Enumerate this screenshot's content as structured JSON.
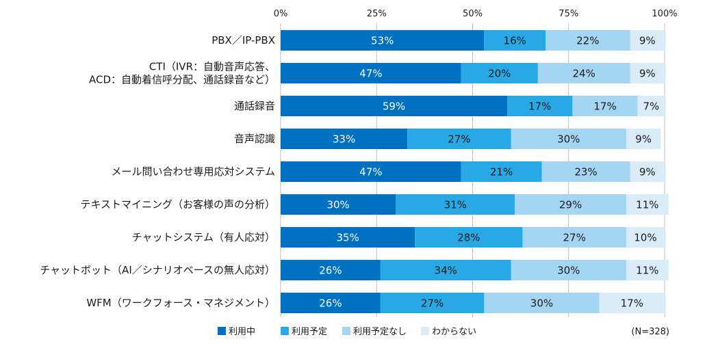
{
  "chart_data": {
    "type": "bar",
    "orientation": "horizontal",
    "stacked": "percent",
    "title": "",
    "xlabel": "",
    "ylabel": "",
    "xlim": [
      0,
      100
    ],
    "ticks": [
      "0%",
      "25%",
      "50%",
      "75%",
      "100%"
    ],
    "grid": true,
    "legend_position": "bottom",
    "note": "(N=328)",
    "categories": [
      [
        "PBX／IP-PBX"
      ],
      [
        "CTI（IVR：自動音声応答、",
        "ACD：自動着信呼分配、通話録音など）"
      ],
      [
        "通話録音"
      ],
      [
        "音声認識"
      ],
      [
        "メール問い合わせ専用応対システム"
      ],
      [
        "テキストマイニング（お客様の声の分析）"
      ],
      [
        "チャットシステム（有人応対）"
      ],
      [
        "チャットボット（AI／シナリオベースの無人応対）"
      ],
      [
        "WFM（ワークフォース・マネジメント）"
      ]
    ],
    "series": [
      {
        "name": "利用中",
        "color": "#0070c0",
        "label_color": "#ffffff",
        "values": [
          53,
          47,
          59,
          33,
          47,
          30,
          35,
          26,
          26
        ]
      },
      {
        "name": "利用予定",
        "color": "#29a8e6",
        "label_color": "#1a1a1a",
        "values": [
          16,
          20,
          17,
          27,
          21,
          31,
          28,
          34,
          27
        ]
      },
      {
        "name": "利用予定なし",
        "color": "#a4d6f4",
        "label_color": "#1a1a1a",
        "values": [
          22,
          24,
          17,
          30,
          23,
          29,
          27,
          30,
          30
        ]
      },
      {
        "name": "わからない",
        "color": "#d9ecf8",
        "label_color": "#1a1a1a",
        "values": [
          9,
          9,
          7,
          9,
          9,
          11,
          10,
          11,
          17
        ]
      }
    ]
  }
}
